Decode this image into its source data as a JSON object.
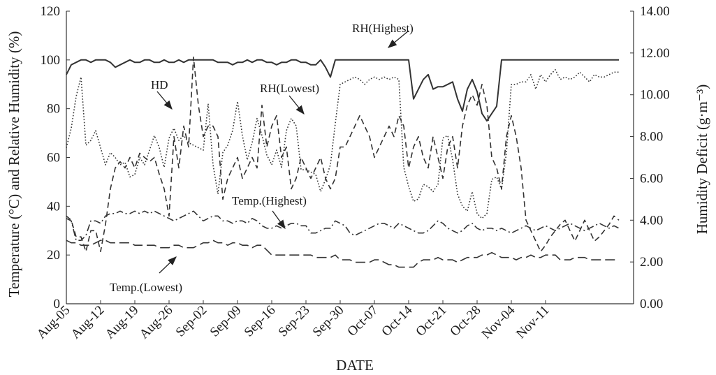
{
  "chart_data": {
    "type": "line",
    "title": "",
    "xlabel": "DATE",
    "ylabel_left": "Temperature (°C) and Relative Humidity (%)",
    "ylabel_right": "Humidity Deficit (g·m⁻³)",
    "x_tick_labels": [
      "Aug-05",
      "Aug-12",
      "Aug-19",
      "Aug-26",
      "Sep-02",
      "Sep-09",
      "Sep-16",
      "Sep-23",
      "Sep-30",
      "Oct-07",
      "Oct-14",
      "Oct-21",
      "Oct-28",
      "Nov-04",
      "Nov-11"
    ],
    "x_range": [
      "Aug-05",
      "Nov-15"
    ],
    "ylim_left": [
      0,
      120
    ],
    "ylim_right": [
      0,
      14
    ],
    "left_ticks": [
      "0",
      "20",
      "40",
      "60",
      "80",
      "100",
      "120"
    ],
    "right_ticks": [
      "0.00",
      "2.00",
      "4.00",
      "6.00",
      "8.00",
      "10.00",
      "12.00",
      "14.00"
    ],
    "grid": false,
    "legend": "none (inline labels with arrows)",
    "series": [
      {
        "name": "RH(Highest)",
        "axis": "left",
        "style": "solid",
        "values": [
          94,
          98,
          99,
          100,
          100,
          99,
          100,
          100,
          100,
          99,
          97,
          98,
          99,
          100,
          99,
          99,
          100,
          100,
          99,
          99,
          100,
          99,
          99,
          100,
          99,
          100,
          100,
          100,
          100,
          100,
          100,
          99,
          99,
          99,
          98,
          99,
          99,
          100,
          99,
          100,
          100,
          99,
          99,
          98,
          99,
          99,
          100,
          100,
          99,
          99,
          98,
          98,
          100,
          97,
          93,
          100,
          100,
          100,
          100,
          100,
          100,
          100,
          100,
          100,
          100,
          100,
          100,
          100,
          100,
          100,
          100,
          84,
          88,
          92,
          94,
          88,
          89,
          89,
          90,
          91,
          84,
          79,
          88,
          92,
          87,
          78,
          75,
          78,
          81,
          100,
          100,
          100,
          100,
          100,
          100,
          100,
          100,
          100,
          100,
          100,
          100,
          100,
          100,
          100,
          100,
          100,
          100,
          100,
          100,
          100,
          100,
          100,
          100,
          100
        ]
      },
      {
        "name": "RH(Lowest)",
        "axis": "left",
        "style": "dotted",
        "values": [
          64,
          72,
          85,
          93,
          65,
          67,
          71,
          64,
          57,
          62,
          60,
          57,
          58,
          52,
          53,
          60,
          57,
          63,
          69,
          64,
          56,
          68,
          72,
          67,
          69,
          66,
          65,
          64,
          63,
          82,
          57,
          45,
          62,
          65,
          71,
          83,
          69,
          59,
          66,
          76,
          69,
          61,
          57,
          63,
          56,
          71,
          76,
          73,
          55,
          55,
          54,
          53,
          46,
          51,
          57,
          74,
          90,
          91,
          92,
          93,
          92,
          90,
          92,
          93,
          92,
          93,
          92,
          93,
          92,
          56,
          48,
          42,
          43,
          49,
          48,
          46,
          49,
          68,
          69,
          59,
          45,
          40,
          38,
          46,
          37,
          35,
          37,
          51,
          52,
          47,
          62,
          90,
          90,
          91,
          91,
          94,
          88,
          94,
          91,
          94,
          96,
          92,
          93,
          92,
          93,
          95,
          93,
          91,
          94,
          93,
          93,
          94,
          95,
          95
        ]
      },
      {
        "name": "HD",
        "axis": "right",
        "style": "dashed",
        "values": [
          4.2,
          4.0,
          3.2,
          3.2,
          2.5,
          3.5,
          3.5,
          2.5,
          3.8,
          5.5,
          6.5,
          6.8,
          6.5,
          7.0,
          6.5,
          7.2,
          7.0,
          6.8,
          7.0,
          6.2,
          5.5,
          4.2,
          8.0,
          6.5,
          8.5,
          7.5,
          11.8,
          9.5,
          8.0,
          8.5,
          8.5,
          8.0,
          5.0,
          6.0,
          6.5,
          7.0,
          6.0,
          6.5,
          7.0,
          6.5,
          9.5,
          7.5,
          8.5,
          9.0,
          7.0,
          7.5,
          5.5,
          6.0,
          7.0,
          6.5,
          6.0,
          6.5,
          7.0,
          6.0,
          5.5,
          6.0,
          7.5,
          7.5,
          8.0,
          8.5,
          9.0,
          8.5,
          8.0,
          7.0,
          7.5,
          8.0,
          8.5,
          8.0,
          9.0,
          8.5,
          6.5,
          7.5,
          8.0,
          7.0,
          6.5,
          8.0,
          7.0,
          6.0,
          7.5,
          8.0,
          6.5,
          8.5,
          9.5,
          10.0,
          9.5,
          10.5,
          9.5,
          7.0,
          6.5,
          5.5,
          8.0,
          9.0,
          8.0,
          6.5,
          4.0,
          3.5,
          3.0,
          2.5,
          2.8,
          3.2,
          3.5,
          3.8,
          4.0,
          3.5,
          3.0,
          3.5,
          4.0,
          3.5,
          3.0,
          3.2,
          3.5,
          3.8,
          4.2,
          4.0
        ]
      },
      {
        "name": "Temp.(Highest)",
        "axis": "left",
        "style": "dash-dot",
        "values": [
          35,
          34,
          26,
          26,
          28,
          34,
          34,
          33,
          36,
          37,
          37,
          38,
          37,
          37,
          38,
          37,
          38,
          37,
          38,
          37,
          36,
          35,
          34,
          35,
          36,
          37,
          38,
          36,
          34,
          35,
          36,
          36,
          34,
          34,
          33,
          34,
          34,
          33,
          35,
          34,
          32,
          31,
          31,
          32,
          31,
          32,
          33,
          33,
          32,
          32,
          29,
          29,
          30,
          31,
          31,
          34,
          33,
          32,
          29,
          28,
          29,
          30,
          31,
          32,
          33,
          33,
          32,
          31,
          33,
          32,
          31,
          30,
          29,
          29,
          30,
          32,
          34,
          33,
          31,
          30,
          29,
          30,
          32,
          33,
          31,
          30,
          31,
          31,
          30,
          31,
          30,
          29,
          30,
          31,
          32,
          31,
          30,
          31,
          32,
          31,
          30,
          31,
          32,
          33,
          32,
          31,
          30,
          31,
          32,
          33,
          32,
          31,
          32,
          31
        ]
      },
      {
        "name": "Temp.(Lowest)",
        "axis": "left",
        "style": "long-dash",
        "values": [
          26,
          25,
          25,
          24,
          24,
          24,
          25,
          26,
          26,
          25,
          25,
          25,
          25,
          25,
          24,
          24,
          24,
          24,
          24,
          23,
          23,
          23,
          24,
          24,
          23,
          23,
          23,
          24,
          25,
          25,
          26,
          25,
          25,
          24,
          25,
          25,
          24,
          24,
          23,
          24,
          24,
          22,
          20,
          20,
          20,
          20,
          20,
          20,
          20,
          20,
          20,
          19,
          19,
          19,
          19,
          20,
          18,
          18,
          18,
          17,
          17,
          17,
          17,
          18,
          18,
          17,
          16,
          16,
          15,
          15,
          15,
          15,
          17,
          18,
          18,
          18,
          19,
          18,
          18,
          18,
          17,
          18,
          19,
          19,
          19,
          20,
          20,
          21,
          20,
          19,
          19,
          19,
          18,
          19,
          19,
          20,
          19,
          19,
          20,
          20,
          20,
          18,
          18,
          18,
          19,
          19,
          19,
          18,
          18,
          18,
          18,
          18,
          18,
          18
        ]
      }
    ],
    "annotations": [
      "RH(Highest)",
      "RH(Lowest)",
      "HD",
      "Temp.(Highest)",
      "Temp.(Lowest)"
    ]
  }
}
